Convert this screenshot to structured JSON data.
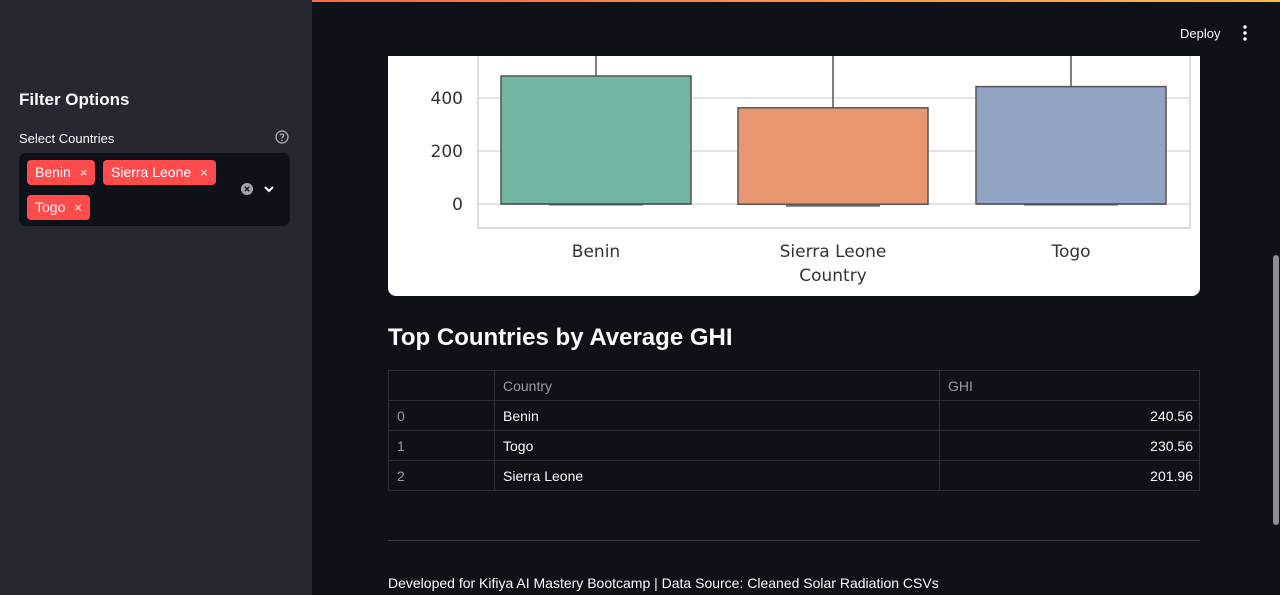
{
  "header": {
    "deploy_label": "Deploy",
    "menu_icon": "vertical-dots-icon"
  },
  "sidebar": {
    "title": "Filter Options",
    "select_label": "Select Countries",
    "help_icon": "question-circle-icon",
    "selected": [
      "Benin",
      "Sierra Leone",
      "Togo"
    ],
    "remove_symbol": "×",
    "clear_icon": "clear-circle-icon",
    "chevron_icon": "chevron-down-icon"
  },
  "chart_data": {
    "type": "boxplot",
    "title": "",
    "xlabel": "Country",
    "ylabel": "",
    "categories": [
      "Benin",
      "Sierra Leone",
      "Togo"
    ],
    "colors": [
      "#72b5a1",
      "#e8966f",
      "#93a3c4"
    ],
    "boxes": [
      {
        "category": "Benin",
        "q1": 0,
        "q3": 483,
        "median": 0,
        "whisker_low": -3
      },
      {
        "category": "Sierra Leone",
        "q1": -1,
        "q3": 363,
        "median": -1,
        "whisker_low": -7
      },
      {
        "category": "Togo",
        "q1": 0,
        "q3": 443,
        "median": 0,
        "whisker_low": -3
      }
    ],
    "yticks": [
      0,
      200,
      400
    ],
    "grid": true
  },
  "table_section": {
    "title": "Top Countries by Average GHI",
    "columns": [
      "",
      "Country",
      "GHI"
    ],
    "rows": [
      {
        "index": "0",
        "country": "Benin",
        "ghi": "240.56"
      },
      {
        "index": "1",
        "country": "Togo",
        "ghi": "230.56"
      },
      {
        "index": "2",
        "country": "Sierra Leone",
        "ghi": "201.96"
      }
    ]
  },
  "footer": {
    "text": "Developed for Kifiya AI Mastery Bootcamp | Data Source: Cleaned Solar Radiation CSVs"
  },
  "colors": {
    "accent": "#ff4b4b",
    "background": "#0e1117",
    "sidebar": "#262730"
  }
}
